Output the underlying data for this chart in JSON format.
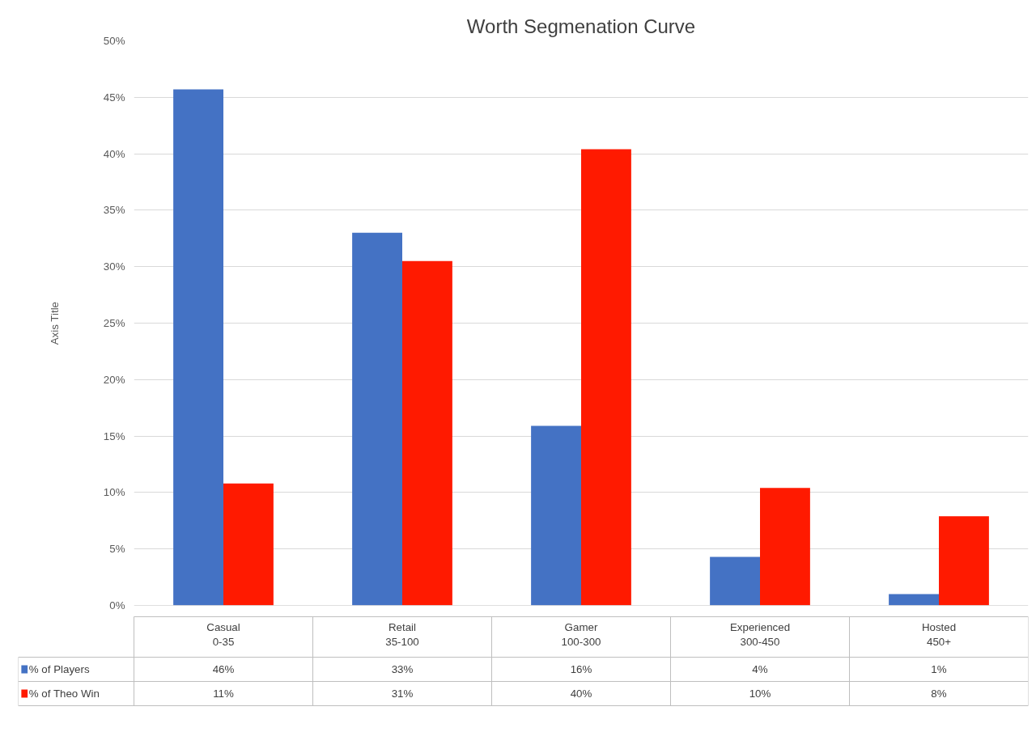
{
  "chart_data": {
    "type": "bar",
    "title": "Worth Segmenation Curve",
    "ylabel": "Axis Title",
    "categories": [
      "Casual\n0-35",
      "Retail\n35-100",
      "Gamer\n100-300",
      "Experienced\n300-450",
      "Hosted\n450+"
    ],
    "series": [
      {
        "name": "% of Players",
        "color": "#4472c4",
        "values": [
          45.7,
          33.0,
          15.9,
          4.3,
          1.0
        ],
        "value_labels": [
          "46%",
          "33%",
          "16%",
          "4%",
          "1%"
        ]
      },
      {
        "name": "% of Theo Win",
        "color": "#ff1a00",
        "values": [
          10.8,
          30.5,
          40.4,
          10.4,
          7.9
        ],
        "value_labels": [
          "11%",
          "31%",
          "40%",
          "10%",
          "8%"
        ]
      }
    ],
    "ylim": [
      0,
      50
    ],
    "yticks": [
      {
        "value": 0,
        "label": "0%"
      },
      {
        "value": 5,
        "label": "5%"
      },
      {
        "value": 10,
        "label": "10%"
      },
      {
        "value": 15,
        "label": "15%"
      },
      {
        "value": 20,
        "label": "20%"
      },
      {
        "value": 25,
        "label": "25%"
      },
      {
        "value": 30,
        "label": "30%"
      },
      {
        "value": 35,
        "label": "35%"
      },
      {
        "value": 40,
        "label": "40%"
      },
      {
        "value": 45,
        "label": "45%"
      },
      {
        "value": 50,
        "label": "50%"
      }
    ],
    "grid": "y",
    "legend": "bottom"
  }
}
